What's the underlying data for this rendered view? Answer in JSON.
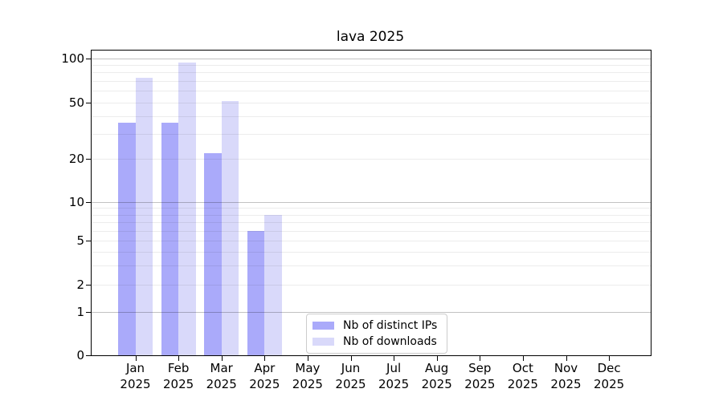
{
  "figure": {
    "background": "#ffffff"
  },
  "chart_data": {
    "type": "bar",
    "title": "lava 2025",
    "categories": [
      "Jan",
      "Feb",
      "Mar",
      "Apr",
      "May",
      "Jun",
      "Jul",
      "Aug",
      "Sep",
      "Oct",
      "Nov",
      "Dec"
    ],
    "x_year_line": "2025",
    "series": [
      {
        "name": "Nb of distinct IPs",
        "color": "#aaaafa",
        "values": [
          36,
          36,
          22,
          6,
          0,
          0,
          0,
          0,
          0,
          0,
          0,
          0
        ]
      },
      {
        "name": "Nb of downloads",
        "color": "#d9d9fa",
        "values": [
          74,
          93,
          51,
          8,
          0,
          0,
          0,
          0,
          0,
          0,
          0,
          0
        ]
      }
    ],
    "xlabel": "",
    "ylabel": "",
    "y_ticks": [
      0,
      1,
      2,
      5,
      10,
      20,
      50,
      100
    ],
    "ylim": [
      0,
      110
    ],
    "y_scale": "symlog",
    "grid": true,
    "grid_major_color": "#c2c2c2",
    "grid_minor_color": "#ececec",
    "legend_position": "lower center",
    "axis_color": "#000000"
  }
}
